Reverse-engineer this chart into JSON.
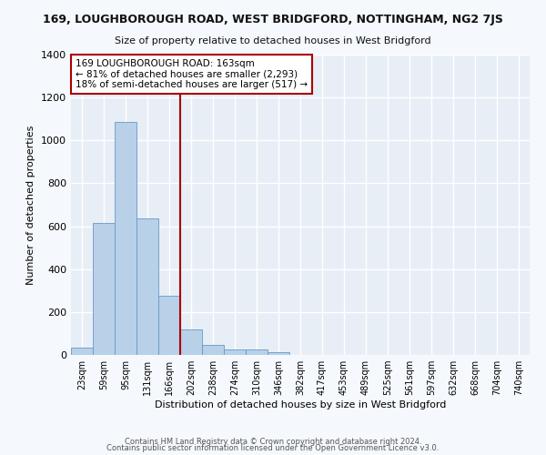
{
  "title": "169, LOUGHBOROUGH ROAD, WEST BRIDGFORD, NOTTINGHAM, NG2 7JS",
  "subtitle": "Size of property relative to detached houses in West Bridgford",
  "xlabel": "Distribution of detached houses by size in West Bridgford",
  "ylabel": "Number of detached properties",
  "bin_labels": [
    "23sqm",
    "59sqm",
    "95sqm",
    "131sqm",
    "166sqm",
    "202sqm",
    "238sqm",
    "274sqm",
    "310sqm",
    "346sqm",
    "382sqm",
    "417sqm",
    "453sqm",
    "489sqm",
    "525sqm",
    "561sqm",
    "597sqm",
    "632sqm",
    "668sqm",
    "704sqm",
    "740sqm"
  ],
  "bar_values": [
    35,
    615,
    1085,
    635,
    275,
    120,
    48,
    25,
    25,
    13,
    0,
    0,
    0,
    0,
    0,
    0,
    0,
    0,
    0,
    0,
    0
  ],
  "bar_color": "#b8d0e8",
  "bar_edge_color": "#6699cc",
  "vline_color": "#aa0000",
  "annotation_text": "169 LOUGHBOROUGH ROAD: 163sqm\n← 81% of detached houses are smaller (2,293)\n18% of semi-detached houses are larger (517) →",
  "annotation_box_color": "#ffffff",
  "annotation_box_edge": "#aa0000",
  "ylim": [
    0,
    1400
  ],
  "yticks": [
    0,
    200,
    400,
    600,
    800,
    1000,
    1200,
    1400
  ],
  "fig_bg_color": "#f5f8fc",
  "plot_bg_color": "#e8eef5",
  "grid_color": "#ffffff",
  "footer1": "Contains HM Land Registry data © Crown copyright and database right 2024.",
  "footer2": "Contains public sector information licensed under the Open Government Licence v3.0."
}
